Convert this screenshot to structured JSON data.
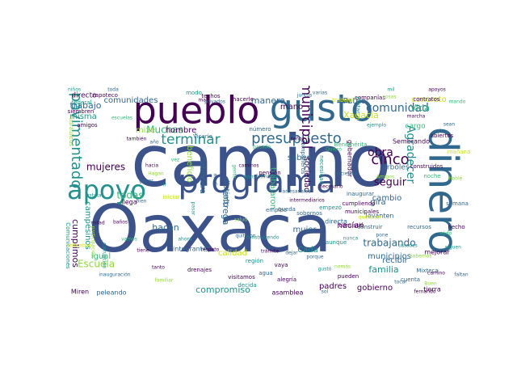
{
  "palette": {
    "dark_purple": "#440154",
    "slate_blue": "#3b528b",
    "teal_blue": "#31688e",
    "teal": "#21918c",
    "green": "#35b779",
    "lime": "#90d743",
    "yellow": "#c8e020"
  },
  "words": [
    {
      "text": "camino"
    },
    {
      "text": "Oaxaca"
    },
    {
      "text": "pueblo"
    },
    {
      "text": "gusto"
    },
    {
      "text": "dinero"
    },
    {
      "text": "programa"
    },
    {
      "text": "apoyo"
    },
    {
      "text": "presupuesto"
    },
    {
      "text": "terminar"
    },
    {
      "text": "pavimentado"
    },
    {
      "text": "municipal"
    },
    {
      "text": "comunidad"
    },
    {
      "text": "cinco"
    },
    {
      "text": "obra"
    },
    {
      "text": "Agradecer"
    },
    {
      "text": "seguir"
    },
    {
      "text": "Muchas"
    },
    {
      "text": "trabajando"
    },
    {
      "text": "todas"
    },
    {
      "text": "Escuela"
    },
    {
      "text": "familia"
    },
    {
      "text": "mujeres"
    },
    {
      "text": "trabajo"
    },
    {
      "text": "manera"
    },
    {
      "text": "Vida"
    },
    {
      "text": "entrega"
    },
    {
      "text": "hacen"
    },
    {
      "text": "hombre"
    },
    {
      "text": "concreto"
    },
    {
      "text": "cumplimos"
    },
    {
      "text": "campesinos"
    },
    {
      "text": "comunidades"
    },
    {
      "text": "Xagacía"
    },
    {
      "text": "compromiso"
    },
    {
      "text": "cambio"
    },
    {
      "text": "hacían"
    },
    {
      "text": "mujer"
    },
    {
      "text": "saben"
    },
    {
      "text": "distinto"
    },
    {
      "text": "cabecera"
    },
    {
      "text": "calidad"
    },
    {
      "text": "mano"
    },
    {
      "text": "municipios"
    },
    {
      "text": "padres"
    },
    {
      "text": "Patria"
    },
    {
      "text": "trabajaron"
    },
    {
      "text": "sociedad"
    },
    {
      "text": "gira"
    },
    {
      "text": "igual"
    },
    {
      "text": "misma"
    },
    {
      "text": "Cada"
    },
    {
      "text": "recibir"
    },
    {
      "text": "gobierno"
    },
    {
      "text": "beneficio"
    },
    {
      "text": "cargo"
    },
    {
      "text": "mixe"
    },
    {
      "text": "directo"
    },
    {
      "text": "árboles"
    },
    {
      "text": "integrantes"
    },
    {
      "text": "tierra"
    },
    {
      "text": "Miren"
    },
    {
      "text": "peleando"
    },
    {
      "text": "asamblea"
    },
    {
      "text": "gobernador"
    },
    {
      "text": "levanten"
    },
    {
      "text": "directa"
    },
    {
      "text": "Sembrando"
    },
    {
      "text": "zapoteco"
    },
    {
      "text": "federal"
    },
    {
      "text": "siembren"
    },
    {
      "text": "construidos"
    },
    {
      "text": "noche"
    },
    {
      "text": "empleo"
    },
    {
      "text": "llega"
    },
    {
      "text": "iniciar"
    },
    {
      "text": "compañeros"
    },
    {
      "text": "necesidad"
    },
    {
      "text": "inaugurar"
    },
    {
      "text": "cumpliendo"
    },
    {
      "text": "municipales"
    },
    {
      "text": "Comunicaciones"
    },
    {
      "text": "hidráulicos"
    },
    {
      "text": "amigos"
    },
    {
      "text": "abiertos"
    },
    {
      "text": "contratos"
    },
    {
      "text": "trabajar"
    },
    {
      "text": "companías"
    },
    {
      "text": "pintar"
    },
    {
      "text": "mañana"
    },
    {
      "text": "mejorar"
    },
    {
      "text": "cuenta"
    },
    {
      "text": "Mixteca"
    },
    {
      "text": "semana"
    },
    {
      "text": "hecho"
    },
    {
      "text": "recursos"
    },
    {
      "text": "construir"
    },
    {
      "text": "aunque"
    },
    {
      "text": "pueden"
    },
    {
      "text": "alegría"
    },
    {
      "text": "agua"
    },
    {
      "text": "vaya"
    },
    {
      "text": "región"
    },
    {
      "text": "drenajes"
    },
    {
      "text": "visitamos"
    },
    {
      "text": "pensión"
    },
    {
      "text": "número"
    },
    {
      "text": "queda"
    },
    {
      "text": "empezó"
    },
    {
      "text": "consistió"
    },
    {
      "text": "sobornos"
    },
    {
      "text": "techos"
    },
    {
      "text": "modo"
    },
    {
      "text": "hacerle"
    },
    {
      "text": "señor"
    },
    {
      "text": "juntos"
    },
    {
      "text": "Benemérita"
    },
    {
      "text": "Amigos"
    },
    {
      "text": "pone"
    },
    {
      "text": "dejar"
    },
    {
      "text": "salud"
    },
    {
      "text": "Vicario"
    },
    {
      "text": "corrupción"
    },
    {
      "text": "participación"
    },
    {
      "text": "colocaban"
    },
    {
      "text": "mitad"
    },
    {
      "text": "baños"
    },
    {
      "text": "mal"
    },
    {
      "text": "privados"
    },
    {
      "text": "artesanales"
    },
    {
      "text": "intermediarios"
    },
    {
      "text": "decida"
    },
    {
      "text": "nunca"
    },
    {
      "text": "Buen"
    },
    {
      "text": "fernando"
    },
    {
      "text": "tocar"
    },
    {
      "text": "inauguración"
    },
    {
      "text": "estatal"
    },
    {
      "text": "bien"
    },
    {
      "text": "quehacer"
    },
    {
      "text": "pasar"
    },
    {
      "text": "transformación"
    },
    {
      "text": "medio"
    },
    {
      "text": "gente"
    },
    {
      "text": "familiar"
    },
    {
      "text": "tanto"
    },
    {
      "text": "Hagan"
    },
    {
      "text": "ganar"
    },
    {
      "text": "ir"
    },
    {
      "text": "hacia"
    },
    {
      "text": "vez"
    },
    {
      "text": "caminos"
    },
    {
      "text": "necesario"
    },
    {
      "text": "construyendo"
    },
    {
      "text": "quitaron"
    },
    {
      "text": "nomás"
    },
    {
      "text": "gustó"
    },
    {
      "text": "siguen"
    },
    {
      "text": "ejido"
    },
    {
      "text": "hablé"
    },
    {
      "text": "sean"
    },
    {
      "text": "apoyos"
    },
    {
      "text": "mil"
    },
    {
      "text": "cosas"
    },
    {
      "text": "varias"
    },
    {
      "text": "Quiero"
    },
    {
      "text": "también"
    },
    {
      "text": "año"
    },
    {
      "text": "toda"
    },
    {
      "text": "niños"
    },
    {
      "text": "escuelas"
    },
    {
      "text": "respeto"
    },
    {
      "text": "ahora"
    },
    {
      "text": "vamos"
    },
    {
      "text": "tiene"
    },
    {
      "text": "porque"
    },
    {
      "text": "sabemos"
    },
    {
      "text": "ustedes"
    },
    {
      "text": "camino"
    },
    {
      "text": "faltan"
    },
    {
      "text": "trámite"
    },
    {
      "text": "sol"
    },
    {
      "text": "pasado"
    },
    {
      "text": "haciendo"
    },
    {
      "text": "ejemplo"
    },
    {
      "text": "mando"
    },
    {
      "text": "marcha"
    },
    {
      "text": "grande"
    },
    {
      "text": "bajo"
    },
    {
      "text": "comer"
    },
    {
      "text": "tiempo"
    },
    {
      "text": "puedo"
    },
    {
      "text": "saludo"
    }
  ]
}
